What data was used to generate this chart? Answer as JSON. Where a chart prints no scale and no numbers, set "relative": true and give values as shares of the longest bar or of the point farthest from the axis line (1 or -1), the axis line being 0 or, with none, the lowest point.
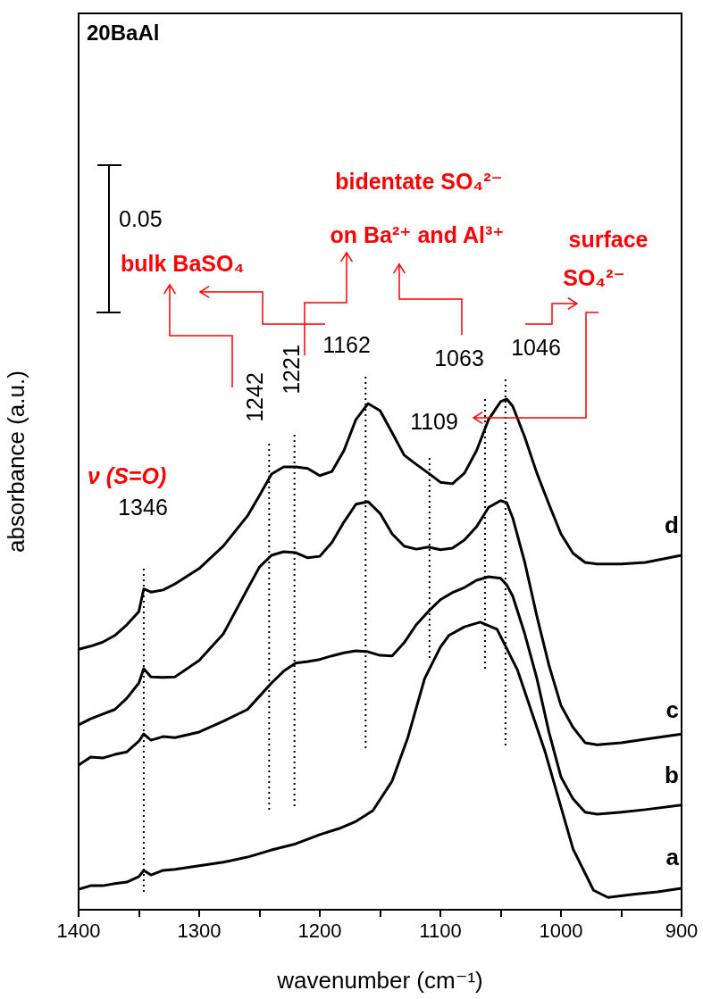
{
  "chart_data": {
    "type": "line",
    "title": "20BaAl",
    "xlabel": "wavenumber (cm⁻¹)",
    "ylabel": "absorbance (a.u.)",
    "relative": true,
    "legend": false,
    "grid": false,
    "marker": "none",
    "xlim": [
      1400,
      900
    ],
    "xticks": [
      1400,
      {
        "value": 1350,
        "label": null
      },
      1300,
      {
        "value": 1250,
        "label": null
      },
      1200,
      {
        "value": 1150,
        "label": null
      },
      1100,
      {
        "value": 1050,
        "label": null
      },
      1000,
      {
        "value": 950,
        "label": null
      },
      900
    ],
    "annotations": [
      "ν (S=O)",
      "bulk BaSO₄",
      "bidentate SO₄²⁻",
      "on Ba²⁺ and Al³⁺",
      "surface",
      "SO₄²⁻",
      "0.05"
    ],
    "ref_lines": [
      {
        "axis": "x",
        "value": 1346,
        "label": "1346",
        "line_style": "dotted"
      },
      {
        "axis": "x",
        "value": 1242,
        "label": "1242",
        "line_style": "dotted"
      },
      {
        "axis": "x",
        "value": 1221,
        "label": "1221",
        "line_style": "dotted"
      },
      {
        "axis": "x",
        "value": 1162,
        "label": "1162",
        "line_style": "dotted"
      },
      {
        "axis": "x",
        "value": 1109,
        "label": "1109",
        "line_style": "dotted"
      },
      {
        "axis": "x",
        "value": 1063,
        "label": "1063",
        "line_style": "dotted"
      },
      {
        "axis": "x",
        "value": 1046,
        "label": "1046",
        "line_style": "dotted"
      }
    ],
    "series": [
      {
        "name": "a",
        "color": "#000000",
        "x": [
          1400,
          1390,
          1380,
          1370,
          1360,
          1350,
          1346,
          1340,
          1330,
          1320,
          1300,
          1280,
          1260,
          1240,
          1220,
          1200,
          1184,
          1170,
          1156,
          1140,
          1127,
          1113,
          1100,
          1093,
          1080,
          1067,
          1053,
          1036,
          1013,
          990,
          973,
          961,
          940,
          920,
          900
        ],
        "values": [
          0.04,
          0.047,
          0.047,
          0.051,
          0.054,
          0.065,
          0.077,
          0.068,
          0.077,
          0.079,
          0.086,
          0.093,
          0.103,
          0.117,
          0.129,
          0.147,
          0.159,
          0.173,
          0.194,
          0.252,
          0.337,
          0.453,
          0.514,
          0.537,
          0.554,
          0.563,
          0.549,
          0.469,
          0.308,
          0.119,
          0.038,
          0.024,
          0.03,
          0.035,
          0.042
        ]
      },
      {
        "name": "b",
        "color": "#000000",
        "x": [
          1400,
          1390,
          1380,
          1370,
          1360,
          1350,
          1346,
          1340,
          1330,
          1320,
          1300,
          1280,
          1260,
          1250,
          1240,
          1230,
          1220,
          1210,
          1200,
          1190,
          1180,
          1170,
          1160,
          1150,
          1140,
          1130,
          1120,
          1110,
          1100,
          1090,
          1080,
          1070,
          1060,
          1050,
          1045,
          1040,
          1030,
          1020,
          1010,
          1000,
          990,
          980,
          970,
          950,
          930,
          900
        ],
        "values": [
          0.283,
          0.299,
          0.297,
          0.304,
          0.309,
          0.33,
          0.344,
          0.332,
          0.339,
          0.337,
          0.348,
          0.369,
          0.392,
          0.418,
          0.444,
          0.467,
          0.483,
          0.486,
          0.49,
          0.497,
          0.503,
          0.507,
          0.505,
          0.498,
          0.497,
          0.523,
          0.558,
          0.584,
          0.607,
          0.621,
          0.631,
          0.645,
          0.652,
          0.649,
          0.636,
          0.614,
          0.54,
          0.453,
          0.348,
          0.26,
          0.217,
          0.191,
          0.187,
          0.191,
          0.196,
          0.205
        ]
      },
      {
        "name": "c",
        "color": "#000000",
        "x": [
          1400,
          1390,
          1380,
          1370,
          1360,
          1350,
          1346,
          1340,
          1330,
          1320,
          1300,
          1280,
          1260,
          1250,
          1240,
          1230,
          1220,
          1210,
          1200,
          1190,
          1180,
          1170,
          1160,
          1150,
          1140,
          1130,
          1120,
          1110,
          1100,
          1090,
          1080,
          1070,
          1060,
          1050,
          1045,
          1040,
          1030,
          1020,
          1010,
          1000,
          990,
          980,
          970,
          950,
          930,
          900
        ],
        "values": [
          0.362,
          0.374,
          0.383,
          0.392,
          0.414,
          0.444,
          0.472,
          0.456,
          0.455,
          0.456,
          0.488,
          0.54,
          0.628,
          0.671,
          0.694,
          0.701,
          0.699,
          0.689,
          0.692,
          0.719,
          0.759,
          0.794,
          0.799,
          0.776,
          0.736,
          0.712,
          0.706,
          0.71,
          0.705,
          0.708,
          0.724,
          0.75,
          0.788,
          0.801,
          0.797,
          0.767,
          0.68,
          0.575,
          0.479,
          0.4,
          0.357,
          0.327,
          0.323,
          0.327,
          0.334,
          0.344
        ]
      },
      {
        "name": "d",
        "color": "#000000",
        "x": [
          1400,
          1390,
          1380,
          1370,
          1360,
          1350,
          1346,
          1340,
          1330,
          1320,
          1300,
          1280,
          1260,
          1250,
          1240,
          1230,
          1220,
          1210,
          1200,
          1190,
          1180,
          1170,
          1160,
          1150,
          1140,
          1130,
          1120,
          1110,
          1100,
          1090,
          1080,
          1070,
          1060,
          1050,
          1045,
          1040,
          1030,
          1020,
          1010,
          1000,
          990,
          980,
          970,
          950,
          930,
          900
        ],
        "values": [
          0.51,
          0.516,
          0.524,
          0.537,
          0.558,
          0.584,
          0.628,
          0.622,
          0.626,
          0.638,
          0.668,
          0.712,
          0.771,
          0.811,
          0.853,
          0.867,
          0.867,
          0.864,
          0.85,
          0.858,
          0.899,
          0.96,
          0.991,
          0.977,
          0.934,
          0.89,
          0.872,
          0.855,
          0.837,
          0.834,
          0.855,
          0.899,
          0.96,
          0.995,
          1,
          0.986,
          0.925,
          0.855,
          0.794,
          0.736,
          0.698,
          0.68,
          0.677,
          0.677,
          0.68,
          0.694
        ]
      }
    ]
  }
}
